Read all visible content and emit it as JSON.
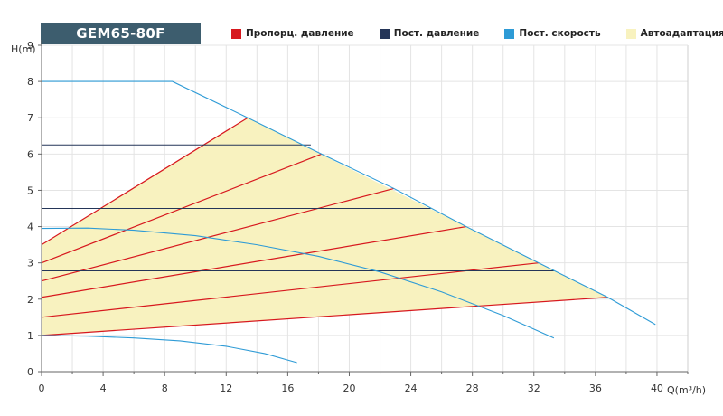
{
  "model": "GEM65-80F",
  "colors": {
    "proportional": "#d7181e",
    "constant_pressure": "#243558",
    "constant_speed": "#2e9bd6",
    "auto": "#f8f2bf"
  },
  "chart_data": {
    "type": "line",
    "xlabel": "Q(m³/h)",
    "ylabel": "H(m)",
    "xlim": [
      0,
      42
    ],
    "ylim": [
      0,
      9
    ],
    "xticks": [
      0,
      4,
      8,
      12,
      16,
      20,
      24,
      28,
      32,
      36,
      40
    ],
    "yticks": [
      0,
      1,
      2,
      3,
      4,
      5,
      6,
      7,
      8,
      9
    ],
    "grid": true,
    "legend": [
      {
        "label": "Пропорц. давление",
        "color": "#d7181e"
      },
      {
        "label": "Пост. давление",
        "color": "#243558"
      },
      {
        "label": "Пост. скорость",
        "color": "#2e9bd6"
      },
      {
        "label": "Автоадаптация",
        "color": "#f8f2bf"
      }
    ],
    "auto_region": [
      [
        0,
        1
      ],
      [
        0,
        3.5
      ],
      [
        13.4,
        7.0
      ],
      [
        36.8,
        2.05
      ]
    ],
    "proportional_pressure": [
      {
        "x": [
          0,
          13.4
        ],
        "y": [
          3.5,
          7.0
        ]
      },
      {
        "x": [
          0,
          18.2
        ],
        "y": [
          3.0,
          6.0
        ]
      },
      {
        "x": [
          0,
          22.9
        ],
        "y": [
          2.5,
          5.05
        ]
      },
      {
        "x": [
          0,
          27.6
        ],
        "y": [
          2.05,
          4.0
        ]
      },
      {
        "x": [
          0,
          32.3
        ],
        "y": [
          1.5,
          3.0
        ]
      },
      {
        "x": [
          0,
          36.8
        ],
        "y": [
          1.0,
          2.05
        ]
      }
    ],
    "constant_pressure": [
      {
        "x": [
          0,
          17.5
        ],
        "y": [
          6.25,
          6.25
        ]
      },
      {
        "x": [
          0,
          25.3
        ],
        "y": [
          4.5,
          4.5
        ]
      },
      {
        "x": [
          0,
          33.3
        ],
        "y": [
          2.78,
          2.78
        ]
      }
    ],
    "constant_speed": [
      {
        "x": [
          0,
          8.5,
          13.4,
          18.2,
          22.9,
          27.6,
          32.3,
          36.8,
          39.9
        ],
        "y": [
          8.0,
          8.0,
          7.0,
          6.0,
          5.05,
          4.0,
          3.0,
          2.05,
          1.3
        ]
      },
      {
        "x": [
          0,
          3,
          6,
          10,
          14,
          18,
          22,
          26,
          30,
          33.3
        ],
        "y": [
          3.95,
          3.96,
          3.9,
          3.75,
          3.5,
          3.18,
          2.75,
          2.2,
          1.55,
          0.93
        ]
      },
      {
        "x": [
          0,
          3,
          6,
          9,
          12,
          14.5,
          16.6
        ],
        "y": [
          1.0,
          0.98,
          0.93,
          0.85,
          0.7,
          0.5,
          0.25
        ]
      }
    ]
  }
}
